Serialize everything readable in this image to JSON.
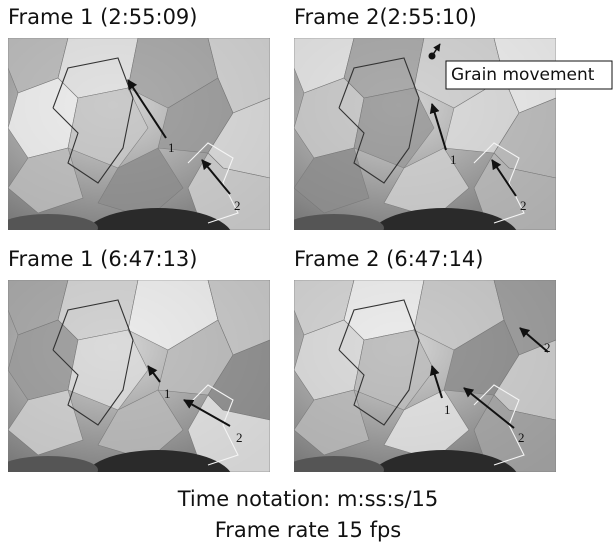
{
  "panels": [
    {
      "title": "Frame 1 (2:55:09)",
      "labels": [
        "1",
        "2"
      ]
    },
    {
      "title": "Frame 2(2:55:10)",
      "labels": [
        "1",
        "2"
      ]
    },
    {
      "title": "Frame 1 (6:47:13)",
      "labels": [
        "1",
        "2"
      ]
    },
    {
      "title": "Frame 2 (6:47:14)",
      "labels": [
        "1",
        "2",
        "2"
      ]
    }
  ],
  "annotation": "Grain movement",
  "caption": [
    "Time notation: m:ss:s/15",
    "Frame rate 15 fps"
  ]
}
